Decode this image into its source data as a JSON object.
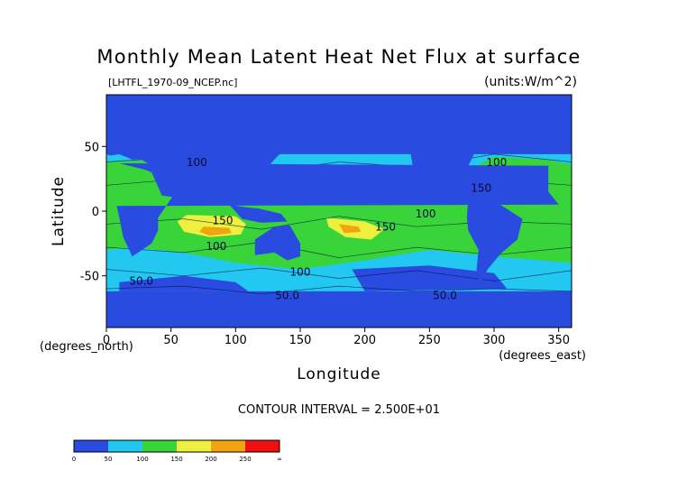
{
  "chart_data": {
    "type": "heatmap",
    "title": "Monthly Mean Latent Heat Net Flux at surface",
    "source_label": "[LHTFL_1970-09_NCEP.nc]",
    "units_label": "(units:W/m^2)",
    "xlabel": "Longitude",
    "ylabel": "Latitude",
    "x_unit_label": "(degrees_east)",
    "y_unit_label": "(degrees_north)",
    "xlim": [
      0,
      360
    ],
    "ylim": [
      -90,
      90
    ],
    "x_ticks": [
      0,
      50,
      100,
      150,
      200,
      250,
      300,
      350
    ],
    "y_ticks": [
      -50,
      0,
      50
    ],
    "contour_interval_text": "CONTOUR INTERVAL = 2.500E+01",
    "contour_labels": [
      {
        "text": "100",
        "x": 70,
        "y": 35
      },
      {
        "text": "150",
        "x": 90,
        "y": -10
      },
      {
        "text": "100",
        "x": 85,
        "y": -30
      },
      {
        "text": "100",
        "x": 150,
        "y": -50
      },
      {
        "text": "50.0",
        "x": 27,
        "y": -57
      },
      {
        "text": "50.0",
        "x": 140,
        "y": -68
      },
      {
        "text": "100",
        "x": 247,
        "y": -5
      },
      {
        "text": "150",
        "x": 216,
        "y": -15
      },
      {
        "text": "50.0",
        "x": 262,
        "y": -68
      },
      {
        "text": "100",
        "x": 302,
        "y": 35
      },
      {
        "text": "150",
        "x": 290,
        "y": 15
      }
    ],
    "colorbar": {
      "levels": [
        "0",
        "50",
        "100",
        "150",
        "200",
        "250",
        "∞"
      ],
      "colors": [
        "#2a4be0",
        "#22c8f0",
        "#39d43a",
        "#eef040",
        "#f0a510",
        "#f01010"
      ]
    }
  }
}
